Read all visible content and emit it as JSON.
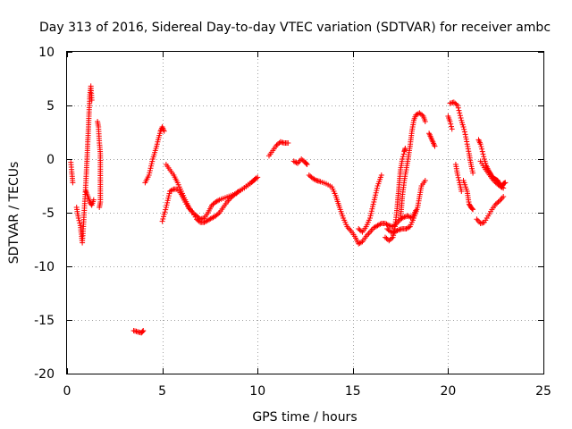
{
  "chart_data": {
    "type": "scatter",
    "title": "Day 313 of 2016, Sidereal Day-to-day VTEC variation (SDTVAR) for receiver ambc",
    "xlabel": "GPS time / hours",
    "ylabel": "SDTVAR / TECUs",
    "xlim": [
      0,
      25
    ],
    "ylim": [
      -20,
      10
    ],
    "grid": true,
    "marker": "+",
    "color": "#ff0000",
    "x_ticks": [
      0,
      5,
      10,
      15,
      20,
      25
    ],
    "x_tick_labels": [
      "0",
      "5",
      "10",
      "15",
      "20",
      "25"
    ],
    "y_ticks": [
      10,
      5,
      0,
      -5,
      -10,
      -15,
      -20
    ],
    "y_tick_labels": [
      "10",
      "5",
      "0",
      "-5",
      "-10",
      "-15",
      "-20"
    ],
    "segments": [
      [
        [
          0.2,
          -0.3
        ],
        [
          0.25,
          -1.2
        ],
        [
          0.3,
          -2.2
        ]
      ],
      [
        [
          0.5,
          -4.5
        ],
        [
          0.6,
          -5.5
        ],
        [
          0.7,
          -6.2
        ],
        [
          0.75,
          -7.0
        ],
        [
          0.8,
          -7.8
        ],
        [
          0.85,
          -6.5
        ],
        [
          0.9,
          -5.0
        ],
        [
          0.95,
          -3.5
        ],
        [
          1.0,
          -1.8
        ],
        [
          1.05,
          0.0
        ],
        [
          1.1,
          2.0
        ],
        [
          1.15,
          4.0
        ],
        [
          1.2,
          6.0
        ],
        [
          1.25,
          6.8
        ],
        [
          1.3,
          5.5
        ]
      ],
      [
        [
          1.0,
          -3.0
        ],
        [
          1.1,
          -3.5
        ],
        [
          1.2,
          -4.0
        ],
        [
          1.3,
          -4.3
        ],
        [
          1.4,
          -3.8
        ]
      ],
      [
        [
          1.6,
          3.5
        ],
        [
          1.65,
          3.0
        ],
        [
          1.7,
          1.5
        ],
        [
          1.75,
          0.5
        ],
        [
          1.75,
          -4.0
        ],
        [
          1.7,
          -4.5
        ]
      ],
      [
        [
          3.5,
          -16.0
        ],
        [
          3.7,
          -16.1
        ],
        [
          3.9,
          -16.2
        ],
        [
          4.0,
          -16.0
        ]
      ],
      [
        [
          4.1,
          -2.2
        ],
        [
          4.3,
          -1.5
        ],
        [
          4.5,
          0.0
        ],
        [
          4.7,
          1.2
        ],
        [
          4.9,
          2.6
        ],
        [
          5.0,
          3.0
        ],
        [
          5.1,
          2.6
        ]
      ],
      [
        [
          5.0,
          -5.8
        ],
        [
          5.2,
          -4.5
        ],
        [
          5.4,
          -3.0
        ],
        [
          5.6,
          -2.8
        ],
        [
          5.8,
          -2.8
        ],
        [
          6.0,
          -3.3
        ],
        [
          6.2,
          -4.0
        ],
        [
          6.4,
          -4.6
        ],
        [
          6.6,
          -5.0
        ],
        [
          6.8,
          -5.3
        ],
        [
          7.0,
          -5.6
        ],
        [
          7.2,
          -5.5
        ],
        [
          7.4,
          -5.0
        ],
        [
          7.6,
          -4.3
        ],
        [
          7.8,
          -4.0
        ],
        [
          8.0,
          -3.8
        ],
        [
          8.3,
          -3.6
        ],
        [
          8.6,
          -3.4
        ],
        [
          8.9,
          -3.2
        ],
        [
          9.2,
          -2.8
        ],
        [
          9.5,
          -2.4
        ],
        [
          9.8,
          -2.0
        ],
        [
          10.0,
          -1.7
        ]
      ],
      [
        [
          5.2,
          -0.5
        ],
        [
          5.4,
          -1.0
        ],
        [
          5.6,
          -1.5
        ],
        [
          5.8,
          -2.2
        ],
        [
          6.0,
          -3.0
        ],
        [
          6.2,
          -3.8
        ],
        [
          6.4,
          -4.5
        ],
        [
          6.6,
          -5.0
        ],
        [
          6.8,
          -5.6
        ],
        [
          7.0,
          -5.9
        ],
        [
          7.2,
          -5.9
        ],
        [
          7.4,
          -5.7
        ],
        [
          7.6,
          -5.5
        ],
        [
          7.8,
          -5.3
        ],
        [
          8.0,
          -5.0
        ],
        [
          8.2,
          -4.5
        ],
        [
          8.4,
          -4.0
        ],
        [
          8.6,
          -3.6
        ],
        [
          8.8,
          -3.3
        ],
        [
          9.0,
          -3.0
        ],
        [
          9.3,
          -2.7
        ],
        [
          9.6,
          -2.3
        ],
        [
          9.9,
          -1.8
        ]
      ],
      [
        [
          10.6,
          0.3
        ],
        [
          10.8,
          0.8
        ],
        [
          11.0,
          1.3
        ],
        [
          11.2,
          1.6
        ],
        [
          11.4,
          1.5
        ],
        [
          11.6,
          1.5
        ]
      ],
      [
        [
          11.9,
          -0.2
        ],
        [
          12.1,
          -0.4
        ],
        [
          12.3,
          0.0
        ],
        [
          12.5,
          -0.3
        ],
        [
          12.6,
          -0.5
        ]
      ],
      [
        [
          12.7,
          -1.5
        ],
        [
          12.9,
          -1.8
        ],
        [
          13.1,
          -2.0
        ],
        [
          13.3,
          -2.1
        ],
        [
          13.6,
          -2.3
        ],
        [
          13.9,
          -2.6
        ],
        [
          14.1,
          -3.4
        ],
        [
          14.3,
          -4.5
        ],
        [
          14.5,
          -5.5
        ],
        [
          14.7,
          -6.3
        ],
        [
          14.9,
          -6.7
        ],
        [
          15.1,
          -7.2
        ],
        [
          15.3,
          -7.9
        ],
        [
          15.5,
          -7.7
        ],
        [
          15.7,
          -7.2
        ],
        [
          15.9,
          -6.8
        ],
        [
          16.1,
          -6.4
        ],
        [
          16.3,
          -6.2
        ],
        [
          16.5,
          -6.0
        ],
        [
          16.7,
          -6.0
        ],
        [
          16.9,
          -6.2
        ],
        [
          17.1,
          -6.3
        ],
        [
          17.3,
          -6.0
        ],
        [
          17.5,
          -5.6
        ],
        [
          17.7,
          -5.4
        ],
        [
          17.9,
          -5.3
        ],
        [
          18.1,
          -5.5
        ],
        [
          18.3,
          -4.8
        ]
      ],
      [
        [
          15.3,
          -6.5
        ],
        [
          15.5,
          -6.8
        ],
        [
          15.7,
          -6.3
        ],
        [
          15.9,
          -5.5
        ],
        [
          16.1,
          -4.0
        ],
        [
          16.3,
          -2.5
        ],
        [
          16.5,
          -1.5
        ]
      ],
      [
        [
          16.7,
          -7.3
        ],
        [
          16.9,
          -7.6
        ],
        [
          17.1,
          -7.3
        ],
        [
          17.2,
          -6.5
        ],
        [
          17.3,
          -5.0
        ],
        [
          17.4,
          -3.0
        ],
        [
          17.5,
          -1.0
        ],
        [
          17.6,
          0.0
        ],
        [
          17.7,
          0.7
        ],
        [
          17.75,
          1.0
        ]
      ],
      [
        [
          16.8,
          -6.5
        ],
        [
          17.0,
          -6.8
        ],
        [
          17.2,
          -6.8
        ],
        [
          17.4,
          -6.6
        ],
        [
          17.6,
          -6.5
        ],
        [
          17.8,
          -6.5
        ],
        [
          18.0,
          -6.3
        ],
        [
          18.2,
          -5.5
        ],
        [
          18.4,
          -4.5
        ],
        [
          18.6,
          -2.5
        ],
        [
          18.8,
          -2.0
        ]
      ],
      [
        [
          17.5,
          -5.5
        ],
        [
          17.6,
          -3.5
        ],
        [
          17.7,
          -2.0
        ],
        [
          17.8,
          -1.0
        ],
        [
          17.9,
          0.0
        ],
        [
          18.0,
          1.2
        ],
        [
          18.1,
          2.6
        ],
        [
          18.2,
          3.6
        ],
        [
          18.3,
          4.1
        ],
        [
          18.5,
          4.3
        ],
        [
          18.7,
          4.0
        ],
        [
          18.8,
          3.5
        ]
      ],
      [
        [
          19.0,
          2.4
        ],
        [
          19.1,
          2.0
        ],
        [
          19.2,
          1.6
        ],
        [
          19.3,
          1.2
        ]
      ],
      [
        [
          20.0,
          4.0
        ],
        [
          20.1,
          3.5
        ],
        [
          20.2,
          2.8
        ]
      ],
      [
        [
          20.1,
          5.2
        ],
        [
          20.3,
          5.3
        ],
        [
          20.5,
          5.0
        ],
        [
          20.6,
          4.3
        ],
        [
          20.7,
          3.6
        ],
        [
          20.8,
          3.0
        ],
        [
          20.9,
          2.3
        ],
        [
          21.0,
          1.4
        ],
        [
          21.1,
          0.5
        ],
        [
          21.2,
          -0.5
        ],
        [
          21.3,
          -1.3
        ]
      ],
      [
        [
          20.4,
          -0.5
        ],
        [
          20.5,
          -1.5
        ],
        [
          20.6,
          -2.2
        ],
        [
          20.7,
          -3.0
        ]
      ],
      [
        [
          20.8,
          -2.0
        ],
        [
          21.0,
          -3.0
        ],
        [
          21.1,
          -4.2
        ],
        [
          21.2,
          -4.5
        ],
        [
          21.3,
          -4.7
        ]
      ],
      [
        [
          21.5,
          -5.6
        ],
        [
          21.7,
          -6.0
        ],
        [
          21.9,
          -5.9
        ],
        [
          22.1,
          -5.3
        ],
        [
          22.3,
          -4.7
        ],
        [
          22.5,
          -4.2
        ],
        [
          22.7,
          -3.9
        ],
        [
          22.9,
          -3.5
        ]
      ],
      [
        [
          21.6,
          1.8
        ],
        [
          21.7,
          1.4
        ],
        [
          21.8,
          0.7
        ],
        [
          21.9,
          0.0
        ],
        [
          22.0,
          -0.6
        ],
        [
          22.1,
          -1.0
        ],
        [
          22.2,
          -1.3
        ],
        [
          22.3,
          -1.6
        ],
        [
          22.4,
          -1.8
        ],
        [
          22.5,
          -1.9
        ],
        [
          22.6,
          -2.0
        ],
        [
          22.7,
          -2.3
        ],
        [
          22.8,
          -2.6
        ],
        [
          22.9,
          -2.3
        ],
        [
          23.0,
          -2.2
        ]
      ],
      [
        [
          21.7,
          -0.2
        ],
        [
          21.9,
          -0.8
        ],
        [
          22.1,
          -1.3
        ],
        [
          22.3,
          -1.8
        ],
        [
          22.5,
          -2.2
        ],
        [
          22.7,
          -2.5
        ],
        [
          22.9,
          -2.7
        ]
      ]
    ]
  }
}
